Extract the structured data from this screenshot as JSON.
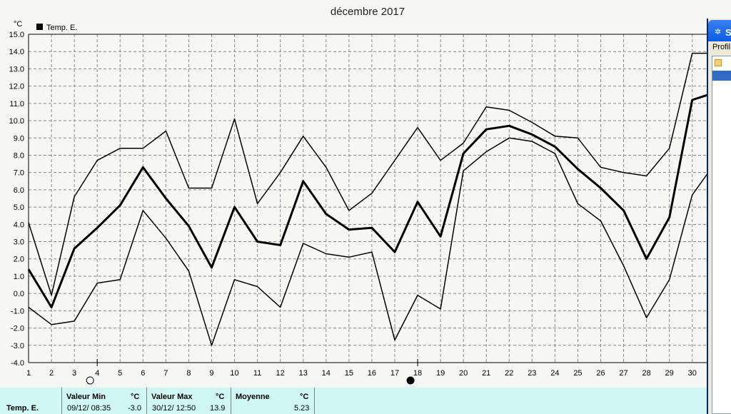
{
  "chart_data": {
    "type": "line",
    "title": "décembre 2017",
    "yunit": "°C",
    "legend": "Temp. E.",
    "ylim": [
      -4.0,
      15.0
    ],
    "ytick_step": 1.0,
    "xlim": [
      1,
      30.7
    ],
    "x": [
      1,
      2,
      3,
      4,
      5,
      6,
      7,
      8,
      9,
      10,
      11,
      12,
      13,
      14,
      15,
      16,
      17,
      18,
      19,
      20,
      21,
      22,
      23,
      24,
      25,
      26,
      27,
      28,
      29,
      30,
      30.7
    ],
    "xtick_labels": [
      "1",
      "2",
      "3",
      "4",
      "5",
      "6",
      "7",
      "8",
      "9",
      "10",
      "11",
      "12",
      "13",
      "14",
      "15",
      "16",
      "17",
      "18",
      "19",
      "20",
      "21",
      "22",
      "23",
      "24",
      "25",
      "26",
      "27",
      "28",
      "29",
      "30"
    ],
    "grid": true,
    "legend_position": "top-left",
    "series": [
      {
        "name": "Temp. E.",
        "role": "max",
        "values": [
          4.1,
          -0.1,
          5.6,
          7.7,
          8.4,
          8.4,
          9.4,
          6.1,
          6.1,
          10.1,
          5.2,
          7.0,
          9.1,
          7.3,
          4.8,
          5.8,
          7.7,
          9.6,
          7.7,
          8.7,
          10.8,
          10.6,
          9.9,
          9.1,
          9.0,
          7.3,
          7.0,
          6.8,
          8.4,
          13.9,
          13.9
        ]
      },
      {
        "name": "Temp. E.",
        "role": "mean",
        "values": [
          1.4,
          -0.8,
          2.6,
          3.8,
          5.1,
          7.3,
          5.5,
          3.9,
          1.5,
          5.0,
          3.0,
          2.8,
          6.5,
          4.6,
          3.7,
          3.8,
          2.4,
          5.3,
          3.3,
          8.1,
          9.5,
          9.7,
          9.2,
          8.5,
          7.2,
          6.1,
          4.8,
          2.0,
          4.4,
          11.2,
          11.5
        ]
      },
      {
        "name": "Temp. E.",
        "role": "min",
        "values": [
          -0.8,
          -1.8,
          -1.6,
          0.6,
          0.8,
          4.8,
          3.2,
          1.3,
          -3.0,
          0.8,
          0.4,
          -0.8,
          2.9,
          2.3,
          2.1,
          2.4,
          -2.7,
          -0.1,
          -0.9,
          7.1,
          8.2,
          9.0,
          8.8,
          8.1,
          5.2,
          4.2,
          1.6,
          -1.4,
          0.8,
          5.7,
          7.0
        ]
      }
    ],
    "markers": [
      {
        "x": 4,
        "symbol": "open-circle"
      },
      {
        "x": 18,
        "symbol": "filled-circle"
      }
    ]
  },
  "footer": {
    "label": "Temp. E.",
    "min": {
      "header": "Valeur Min",
      "unit": "°C",
      "date": "09/12/ 08:35",
      "value": "-3.0"
    },
    "max": {
      "header": "Valeur Max",
      "unit": "°C",
      "date": "30/12/ 12:50",
      "value": "13.9"
    },
    "avg": {
      "header": "Moyenne",
      "unit": "°C",
      "value": "5.23"
    }
  },
  "side_window": {
    "title_fragment": "S",
    "menu_fragment": "Profil"
  }
}
